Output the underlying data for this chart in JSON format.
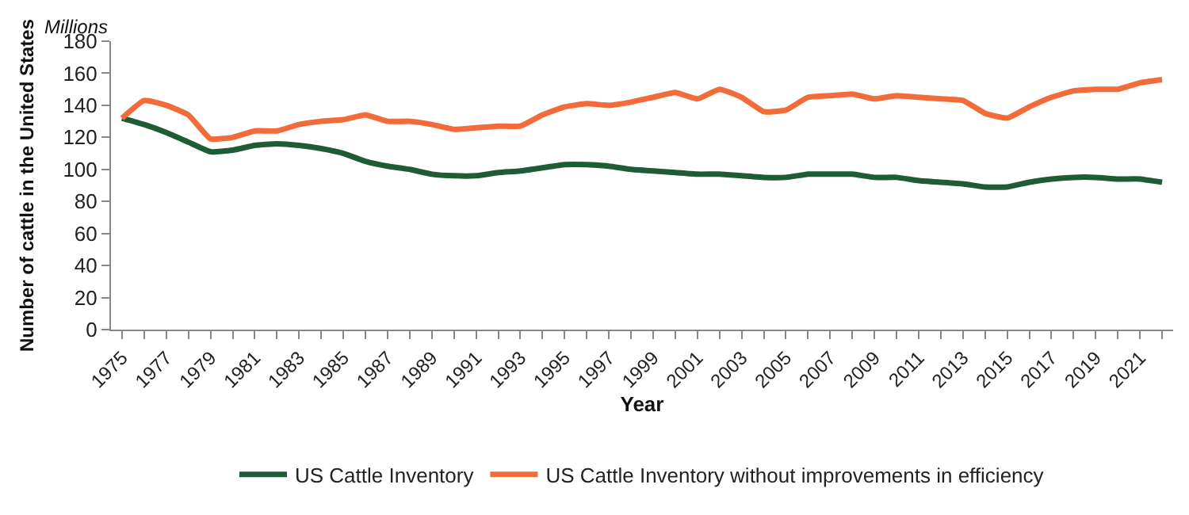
{
  "chart_data": {
    "type": "line",
    "xlabel": "Year",
    "ylabel": "Number of cattle in the United States",
    "annotations": [
      "Millions"
    ],
    "categories": [
      "1975",
      null,
      "1977",
      null,
      "1979",
      null,
      "1981",
      null,
      "1983",
      null,
      "1985",
      null,
      "1987",
      null,
      "1989",
      null,
      "1991",
      null,
      "1993",
      null,
      "1995",
      null,
      "1997",
      null,
      "1999",
      null,
      "2001",
      null,
      "2003",
      null,
      "2005",
      null,
      "2007",
      null,
      "2009",
      null,
      "2011",
      null,
      "2013",
      null,
      "2015",
      null,
      "2017",
      null,
      "2019",
      null,
      "2021",
      null
    ],
    "series": [
      {
        "name": "US Cattle Inventory",
        "color": "#1e5c36",
        "values": [
          132,
          128,
          123,
          117,
          111,
          112,
          115,
          116,
          115,
          113,
          110,
          105,
          102,
          100,
          97,
          96,
          96,
          98,
          99,
          101,
          103,
          103,
          102,
          100,
          99,
          98,
          97,
          97,
          96,
          95,
          95,
          97,
          97,
          97,
          95,
          95,
          93,
          92,
          91,
          89,
          89,
          92,
          94,
          95,
          95,
          94,
          94,
          92
        ]
      },
      {
        "name": "US Cattle Inventory without improvements in efficiency",
        "color": "#f26b3a",
        "values": [
          132,
          143,
          140,
          134,
          119,
          120,
          124,
          124,
          128,
          130,
          131,
          134,
          130,
          130,
          128,
          125,
          126,
          127,
          127,
          134,
          139,
          141,
          140,
          142,
          145,
          148,
          144,
          150,
          145,
          136,
          137,
          145,
          146,
          147,
          144,
          146,
          145,
          144,
          143,
          135,
          132,
          139,
          145,
          149,
          150,
          150,
          154,
          156
        ]
      }
    ],
    "ylim": [
      0,
      180
    ],
    "yticks": [
      0,
      20,
      40,
      60,
      80,
      100,
      120,
      140,
      160,
      180
    ],
    "legend": "bottom",
    "marker": "none",
    "line_style": "solid"
  }
}
